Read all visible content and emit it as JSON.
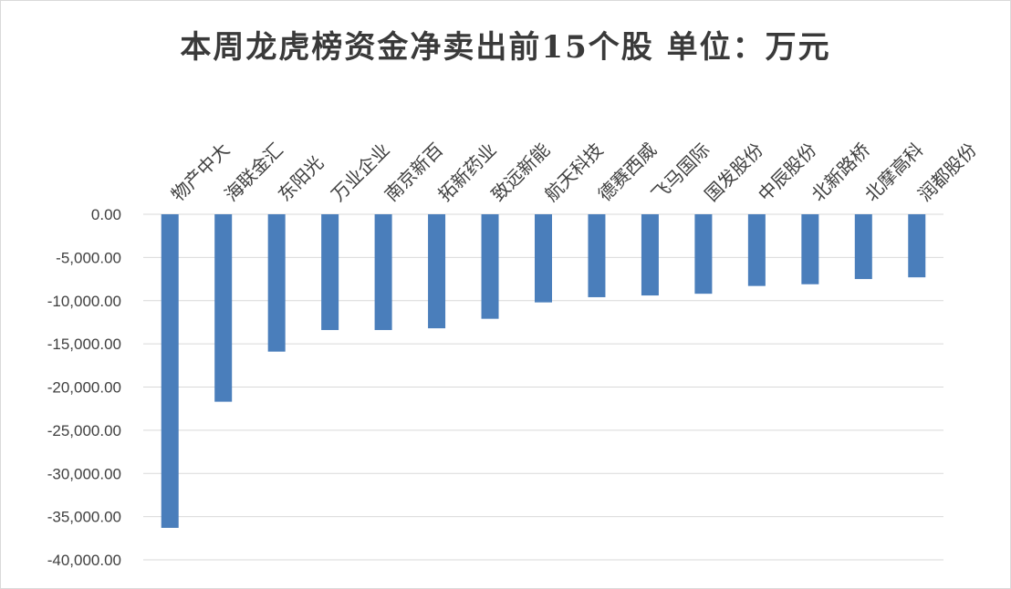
{
  "chart_data": {
    "type": "bar",
    "title": "本周龙虎榜资金净卖出前15个股 单位：万元",
    "categories": [
      "物产中大",
      "海联金汇",
      "东阳光",
      "万业企业",
      "南京新百",
      "拓新药业",
      "致远新能",
      "航天科技",
      "德赛西威",
      "飞马国际",
      "国发股份",
      "中辰股份",
      "北新路桥",
      "北摩高科",
      "润都股份"
    ],
    "values": [
      -36300,
      -21700,
      -15900,
      -13400,
      -13400,
      -13200,
      -12100,
      -10200,
      -9600,
      -9400,
      -9200,
      -8300,
      -8100,
      -7500,
      -7300
    ],
    "ylim": [
      -40000,
      0
    ],
    "yticks": [
      0,
      -5000,
      -10000,
      -15000,
      -20000,
      -25000,
      -30000,
      -35000,
      -40000
    ],
    "ytick_labels": [
      "0.00",
      "-5,000.00",
      "-10,000.00",
      "-15,000.00",
      "-20,000.00",
      "-25,000.00",
      "-30,000.00",
      "-35,000.00",
      "-40,000.00"
    ],
    "grid": true,
    "bar_color": "#4a7ebb"
  }
}
